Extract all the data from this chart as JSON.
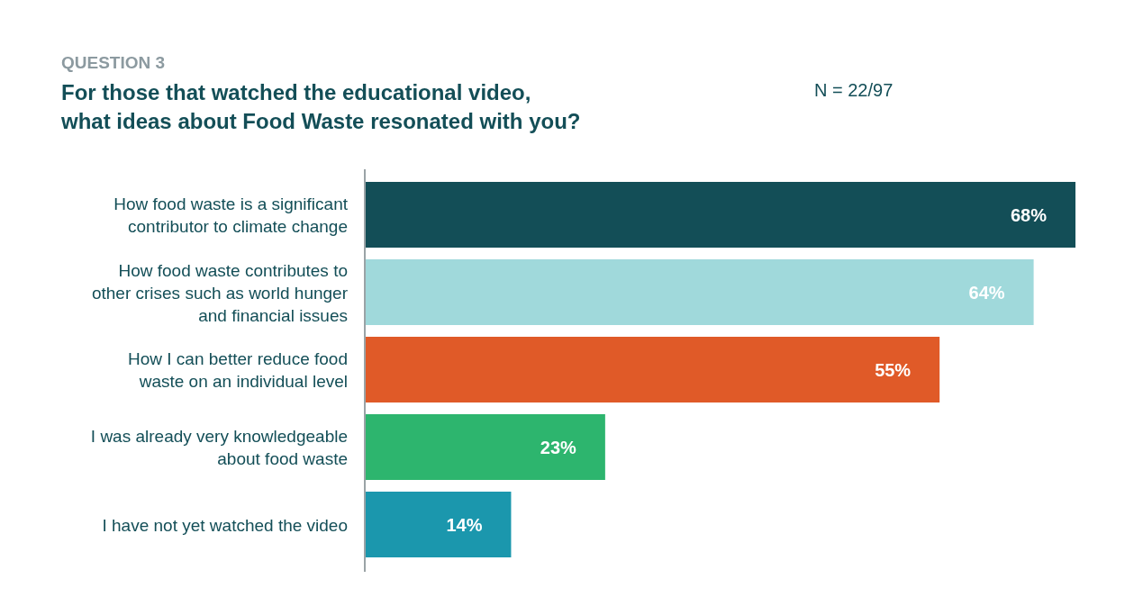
{
  "chart_data": {
    "type": "bar",
    "orientation": "horizontal",
    "subtitle": "QUESTION 3",
    "title": "For those that watched the educational video, what ideas about Food Waste resonated with you?",
    "annotations": [
      "N = 22/97"
    ],
    "categories": [
      "How food waste is a significant contributor to climate change",
      "How food waste contributes to other crises such as world hunger and financial issues",
      "How I can better reduce food waste on an individual level",
      "I was already very knowledgeable about food waste",
      "I have not yet watched the video"
    ],
    "values": [
      68,
      64,
      55,
      23,
      14
    ],
    "value_labels": [
      "68%",
      "64%",
      "55%",
      "23%",
      "14%"
    ],
    "colors": [
      "#134e57",
      "#a0d9db",
      "#e05a28",
      "#2db56e",
      "#1b97ad"
    ]
  }
}
